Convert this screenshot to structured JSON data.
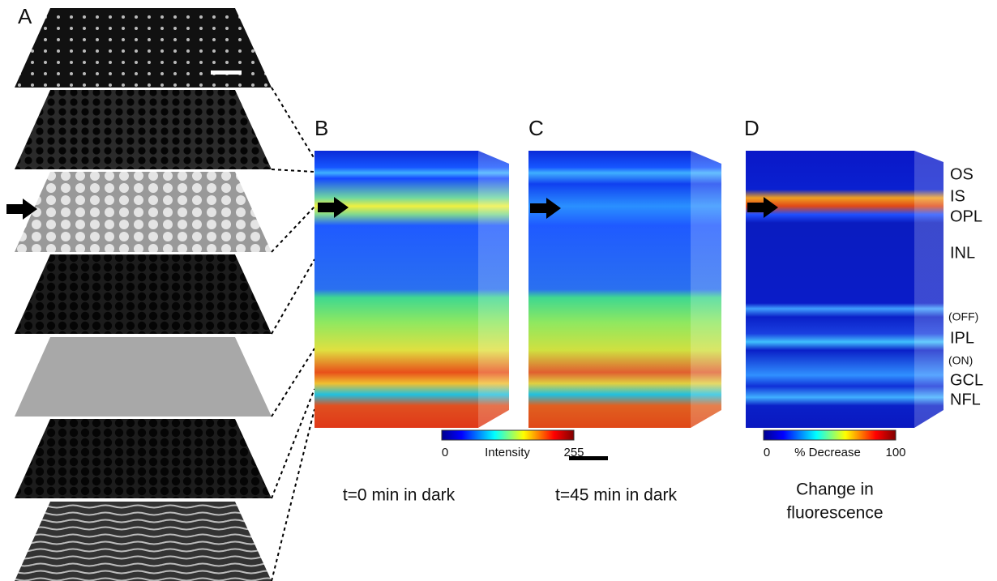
{
  "panels": {
    "a": {
      "label": "A"
    },
    "b": {
      "label": "B",
      "caption": "t=0 min in dark"
    },
    "c": {
      "label": "C",
      "caption": "t=45 min in dark"
    },
    "d": {
      "label": "D",
      "caption": [
        "Change in",
        "fluorescence"
      ]
    }
  },
  "intensity_scale": {
    "min": 0,
    "label": "Intensity",
    "max": 255
  },
  "decrease_scale": {
    "min": 0,
    "label": "% Decrease",
    "max": 100
  },
  "layers": [
    "OS",
    "IS",
    "OPL",
    "INL",
    "(OFF)",
    "IPL",
    "(ON)",
    "GCL",
    "NFL"
  ]
}
